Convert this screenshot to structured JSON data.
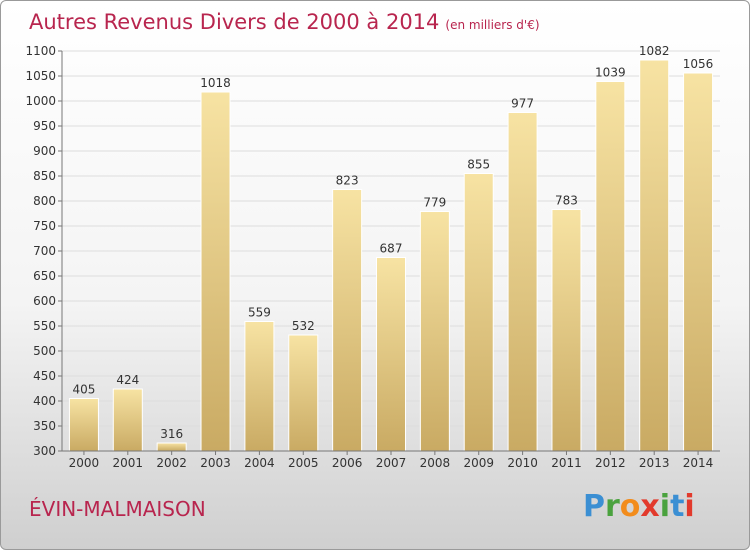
{
  "header": {
    "title": "Autres Revenus Divers de 2000 à 2014",
    "unit": "(en milliers d'€)"
  },
  "footer": {
    "city": "ÉVIN-MALMAISON",
    "logo_letters": [
      {
        "char": "P",
        "color": "#3b8fd3"
      },
      {
        "char": "r",
        "color": "#4aa23e"
      },
      {
        "char": "o",
        "color": "#f28c1c"
      },
      {
        "char": "x",
        "color": "#e23a2c"
      },
      {
        "char": "i",
        "color": "#4aa23e"
      },
      {
        "char": "t",
        "color": "#3b8fd3"
      },
      {
        "char": "i",
        "color": "#e23a2c"
      }
    ]
  },
  "colors": {
    "title": "#b8254e",
    "bar_light": "#f7e3a3",
    "bar_dark": "#c9aa63",
    "grid": "#dddddd",
    "axis": "#777777",
    "text": "#333333"
  },
  "chart_data": {
    "type": "bar",
    "categories": [
      "2000",
      "2001",
      "2002",
      "2003",
      "2004",
      "2005",
      "2006",
      "2007",
      "2008",
      "2009",
      "2010",
      "2011",
      "2012",
      "2013",
      "2014"
    ],
    "values": [
      405,
      424,
      316,
      1018,
      559,
      532,
      823,
      687,
      779,
      855,
      977,
      783,
      1039,
      1082,
      1056
    ],
    "data_labels": [
      "405",
      "424",
      "316",
      "1018",
      "559",
      "532",
      "823",
      "687",
      "779",
      "855",
      "977",
      "783",
      "1039",
      "1082",
      "1056"
    ],
    "ylim": [
      300,
      1100
    ],
    "yticks": [
      300,
      350,
      400,
      450,
      500,
      550,
      600,
      650,
      700,
      750,
      800,
      850,
      900,
      950,
      1000,
      1050,
      1100
    ],
    "ytick_labels": [
      "300",
      "350",
      "400",
      "450",
      "500",
      "550",
      "600",
      "650",
      "700",
      "750",
      "800",
      "850",
      "900",
      "950",
      "1000",
      "1050",
      "1100"
    ],
    "grid": true,
    "legend": "none"
  }
}
